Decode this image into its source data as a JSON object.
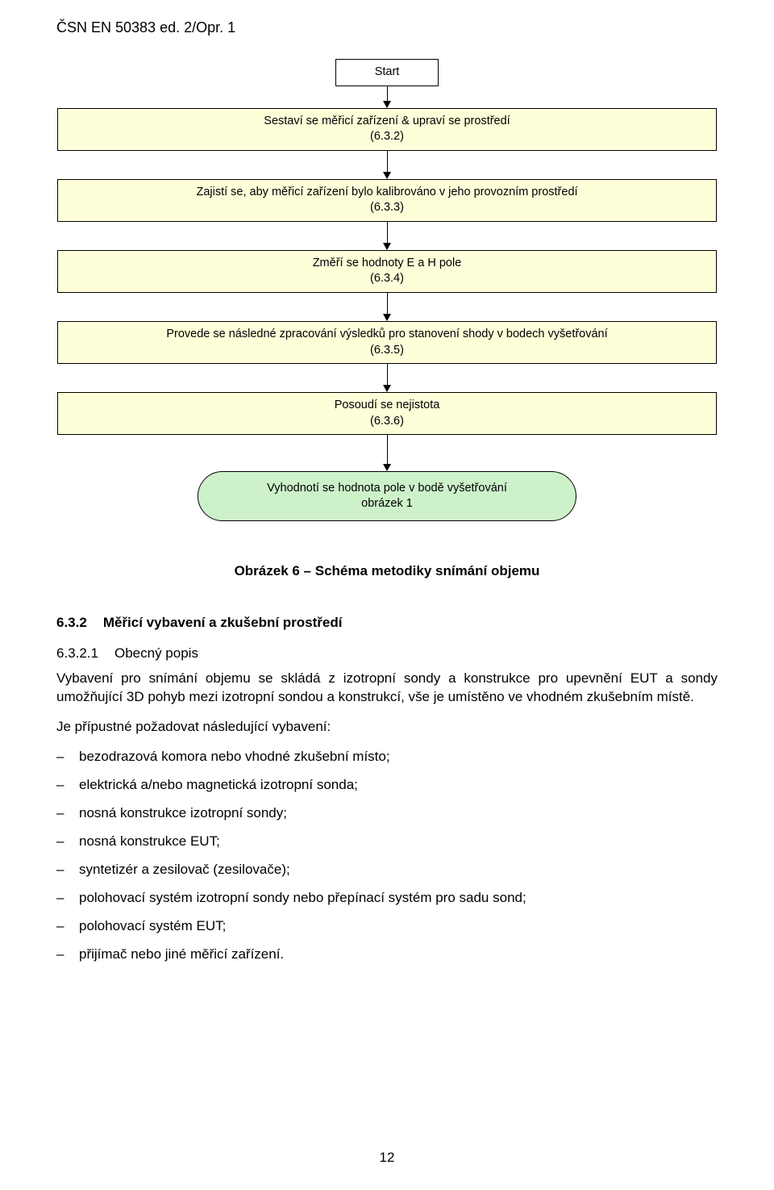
{
  "doc_header": "ČSN EN 50383 ed. 2/Opr. 1",
  "flowchart": {
    "bg_step": "#feffd9",
    "bg_terminator": "#cdf2ca",
    "start": "Start",
    "steps": [
      {
        "text": "Sestaví se měřicí zařízení & upraví se prostředí",
        "ref": "(6.3.2)"
      },
      {
        "text": "Zajistí se, aby měřicí zařízení bylo kalibrováno v jeho provozním prostředí",
        "ref": "(6.3.3)"
      },
      {
        "text": "Změří se hodnoty E a H pole",
        "ref": "(6.3.4)"
      },
      {
        "text": "Provede se následné zpracování výsledků pro stanovení shody v bodech vyšetřování",
        "ref": "(6.3.5)"
      },
      {
        "text": "Posoudí se nejistota",
        "ref": "(6.3.6)"
      }
    ],
    "terminator": {
      "text": "Vyhodnotí se hodnota pole v bodě vyšetřování",
      "ref": "obrázek 1"
    },
    "arrow_heights": [
      18,
      26,
      26,
      26,
      26,
      36
    ]
  },
  "figure_caption": "Obrázek 6 – Schéma metodiky snímání objemu",
  "section": {
    "num": "6.3.2",
    "title": "Měřicí vybavení a zkušební prostředí"
  },
  "subsection": {
    "num": "6.3.2.1",
    "title": "Obecný popis"
  },
  "para1": "Vybavení pro snímání objemu se skládá z izotropní sondy a konstrukce pro upevnění EUT a sondy umožňující 3D pohyb mezi izotropní sondou a konstrukcí, vše je umístěno ve vhodném zkušebním místě.",
  "para2": "Je přípustné požadovat následující vybavení:",
  "list": [
    "bezodrazová komora nebo vhodné zkušební místo;",
    "elektrická a/nebo magnetická izotropní sonda;",
    "nosná konstrukce izotropní sondy;",
    "nosná konstrukce EUT;",
    "syntetizér a zesilovač (zesilovače);",
    "polohovací systém izotropní sondy nebo přepínací systém pro sadu sond;",
    "polohovací systém EUT;",
    "přijímač nebo jiné měřicí zařízení."
  ],
  "page_number": "12"
}
